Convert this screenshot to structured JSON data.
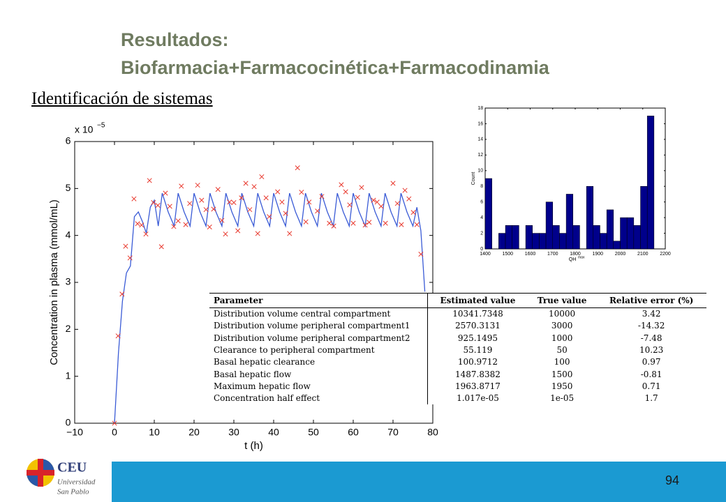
{
  "header": {
    "title_line1": "Resultados:",
    "title_line2": "Biofarmacia+Farmacocinética+Farmacodinamia",
    "subtitle": "Identificación de sistemas"
  },
  "chart_data": [
    {
      "type": "line",
      "xlabel": "t (h)",
      "ylabel": "Concentration in plasma (mmol/mL)",
      "multiplier": "x 10",
      "multiplier_exp": "−5",
      "xlim": [
        -10,
        80
      ],
      "xticks": [
        {
          "value": -10,
          "label": "−10"
        },
        0,
        10,
        20,
        30,
        40,
        50,
        60,
        70,
        80
      ],
      "ylim": [
        0,
        6
      ],
      "yticks": [
        0,
        1,
        2,
        3,
        4,
        5,
        6
      ],
      "series": [
        {
          "type": "line",
          "color": "#3a5bd6",
          "x": [
            0,
            1,
            2,
            3,
            4,
            5,
            6,
            7,
            8,
            9,
            10,
            11,
            12,
            13.5,
            15,
            16,
            17.5,
            19,
            20,
            21.5,
            23,
            24,
            25.5,
            27,
            28,
            29.5,
            31,
            32,
            33.5,
            35,
            36,
            37.5,
            39,
            40,
            41.5,
            43,
            44,
            45.5,
            47,
            48,
            49.5,
            51,
            52,
            53.5,
            55,
            56,
            57.5,
            59,
            60,
            61.5,
            63,
            64,
            65.5,
            67,
            68,
            69.5,
            71,
            72,
            73.5,
            75,
            76,
            77,
            78
          ],
          "values": [
            0,
            1.5,
            2.6,
            3.2,
            3.35,
            4.4,
            4.5,
            4.3,
            4.05,
            4.6,
            4.75,
            4.2,
            4.9,
            4.5,
            4.2,
            4.9,
            4.5,
            4.2,
            4.9,
            4.5,
            4.2,
            4.9,
            4.5,
            4.2,
            4.9,
            4.5,
            4.2,
            4.9,
            4.5,
            4.2,
            4.9,
            4.5,
            4.2,
            4.9,
            4.5,
            4.2,
            4.9,
            4.5,
            4.2,
            4.9,
            4.5,
            4.2,
            4.9,
            4.5,
            4.2,
            4.9,
            4.5,
            4.2,
            4.9,
            4.5,
            4.2,
            4.9,
            4.5,
            4.2,
            4.9,
            4.5,
            4.2,
            4.9,
            4.5,
            4.2,
            4.6,
            4.1,
            2.8
          ]
        },
        {
          "type": "scatter",
          "color": "#e8392e",
          "x": [
            0,
            0.9,
            1.9,
            2.8,
            3.9,
            4.9,
            5.8,
            6.8,
            7.9,
            8.8,
            9.8,
            10.9,
            11.8,
            12.8,
            13.9,
            14.9,
            16,
            16.8,
            17.9,
            18.9,
            20.9,
            21.9,
            23,
            23.9,
            24.9,
            26,
            27,
            27.9,
            28.9,
            30,
            31,
            31.9,
            33,
            34,
            35.1,
            36,
            37,
            38.1,
            38.9,
            41,
            42.1,
            43,
            44,
            46,
            47,
            48.1,
            48.9,
            51,
            52.1,
            54,
            55.1,
            57,
            58.1,
            59.1,
            60,
            61.1,
            62.1,
            63,
            64,
            65.1,
            66,
            67,
            68.1,
            70,
            71.1,
            72.1,
            73,
            74,
            75.1,
            76,
            77
          ],
          "values": [
            0,
            1.86,
            2.75,
            3.77,
            3.52,
            4.78,
            4.25,
            4.22,
            4.03,
            5.17,
            4.7,
            4.64,
            3.76,
            4.9,
            4.62,
            4.19,
            4.31,
            5.05,
            4.23,
            4.68,
            5.07,
            4.75,
            4.55,
            4.18,
            4.56,
            4.98,
            4.32,
            4.03,
            4.71,
            4.7,
            4.1,
            4.8,
            5.11,
            4.55,
            5.04,
            4.04,
            5.25,
            4.8,
            4.4,
            4.93,
            4.71,
            4.47,
            4.04,
            5.44,
            4.92,
            4.29,
            4.71,
            4.52,
            4.83,
            4.26,
            4.2,
            5.08,
            4.93,
            4.65,
            4.26,
            4.81,
            5.02,
            4.22,
            4.28,
            4.75,
            4.71,
            4.62,
            4.26,
            5.11,
            4.68,
            4.23,
            4.96,
            4.78,
            4.49,
            4.23,
            3.6
          ]
        }
      ]
    },
    {
      "type": "histogram",
      "xlabel": "QH",
      "xlabel_sup": "max",
      "ylabel": "Count",
      "color": "#00008b",
      "bins": [
        1400,
        1430,
        1460,
        1490,
        1520,
        1550,
        1580,
        1610,
        1640,
        1670,
        1700,
        1730,
        1760,
        1790,
        1820,
        1850,
        1880,
        1910,
        1940,
        1970,
        2000,
        2030,
        2060,
        2090,
        2120,
        2150
      ],
      "counts": [
        9,
        0,
        2,
        3,
        3,
        0,
        3,
        2,
        2,
        6,
        3,
        2,
        7,
        3,
        0,
        8,
        3,
        2,
        5,
        1,
        4,
        4,
        3,
        8,
        17
      ],
      "xlim": [
        1400,
        2200
      ],
      "xticks": [
        1400,
        1500,
        1600,
        1700,
        1800,
        1900,
        2000,
        2100,
        2200
      ],
      "ylim": [
        0,
        18
      ],
      "yticks": [
        0,
        2,
        4,
        6,
        8,
        10,
        12,
        14,
        16,
        18
      ]
    }
  ],
  "table": {
    "header": [
      "Parameter",
      "Estimated value",
      "True value",
      "Relative error (%)"
    ],
    "rows": [
      [
        "Distribution volume central compartment",
        "10341.7348",
        "10000",
        "3.42"
      ],
      [
        "Distribution volume peripheral compartment1",
        "2570.3131",
        "3000",
        "-14.32"
      ],
      [
        "Distribution volume peripheral compartment2",
        "925.1495",
        "1000",
        "-7.48"
      ],
      [
        "Clearance to peripheral compartment",
        "55.119",
        "50",
        "10.23"
      ],
      [
        "Basal hepatic clearance",
        "100.9712",
        "100",
        "0.97"
      ],
      [
        "Basal hepatic flow",
        "1487.8382",
        "1500",
        "-0.81"
      ],
      [
        "Maximum hepatic flow",
        "1963.8717",
        "1950",
        "0.71"
      ],
      [
        "Concentration half effect",
        "1.017e-05",
        "1e-05",
        "1.7"
      ]
    ]
  },
  "footer": {
    "page": "94",
    "logo_name": "CEU",
    "logo_line1": "Universidad",
    "logo_line2": "San Pablo"
  }
}
